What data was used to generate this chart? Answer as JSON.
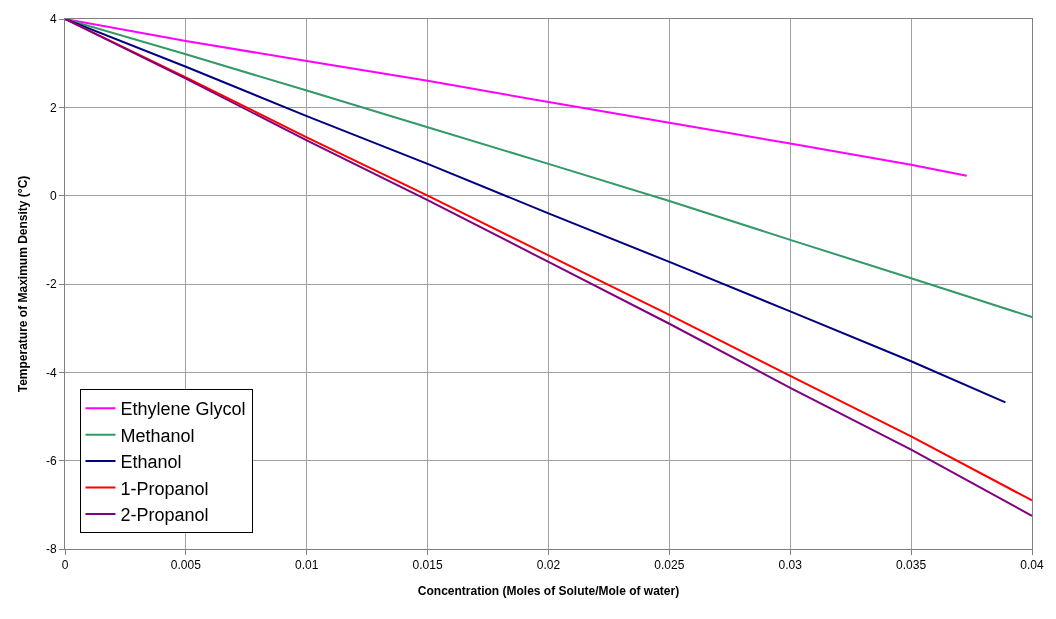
{
  "chart_data": {
    "type": "line",
    "xlabel": "Concentration (Moles of Solute/Mole of water)",
    "ylabel": "Temperature of Maximum Density (°C)",
    "xlim": [
      0,
      0.04
    ],
    "xticks": [
      0,
      0.005,
      0.01,
      0.015,
      0.02,
      0.025,
      0.03,
      0.035,
      0.04
    ],
    "ylim": [
      -8,
      4
    ],
    "yticks": [
      -8,
      -6,
      -4,
      -2,
      0,
      2,
      4
    ],
    "grid": true,
    "legend": "bottom left",
    "marker": "none",
    "line_style": "solid",
    "series": [
      {
        "name": "Ethylene Glycol",
        "color": "#ff00ff",
        "x": [
          0,
          0.005,
          0.01,
          0.015,
          0.02,
          0.025,
          0.03,
          0.035,
          0.0373
        ],
        "values": [
          4,
          3.5,
          3.05,
          2.6,
          2.12,
          1.65,
          1.18,
          0.7,
          0.45
        ]
      },
      {
        "name": "Methanol",
        "color": "#339966",
        "x": [
          0,
          0.005,
          0.01,
          0.015,
          0.02,
          0.025,
          0.03,
          0.035,
          0.04
        ],
        "values": [
          4,
          3.2,
          2.38,
          1.55,
          0.72,
          -0.12,
          -1.0,
          -1.87,
          -2.75
        ]
      },
      {
        "name": "Ethanol",
        "color": "#000080",
        "x": [
          0,
          0.005,
          0.01,
          0.015,
          0.02,
          0.025,
          0.03,
          0.035,
          0.0389
        ],
        "values": [
          4,
          2.92,
          1.8,
          0.72,
          -0.4,
          -1.5,
          -2.62,
          -3.75,
          -4.68
        ]
      },
      {
        "name": "1-Propanol",
        "color": "#ff0000",
        "x": [
          0,
          0.005,
          0.01,
          0.015,
          0.02,
          0.025,
          0.03,
          0.035,
          0.04
        ],
        "values": [
          4,
          2.68,
          1.32,
          0.0,
          -1.35,
          -2.7,
          -4.08,
          -5.45,
          -6.9
        ]
      },
      {
        "name": "2-Propanol",
        "color": "#800080",
        "x": [
          0,
          0.005,
          0.01,
          0.015,
          0.02,
          0.025,
          0.03,
          0.035,
          0.04
        ],
        "values": [
          4,
          2.65,
          1.25,
          -0.1,
          -1.5,
          -2.9,
          -4.35,
          -5.75,
          -7.25
        ]
      }
    ]
  }
}
